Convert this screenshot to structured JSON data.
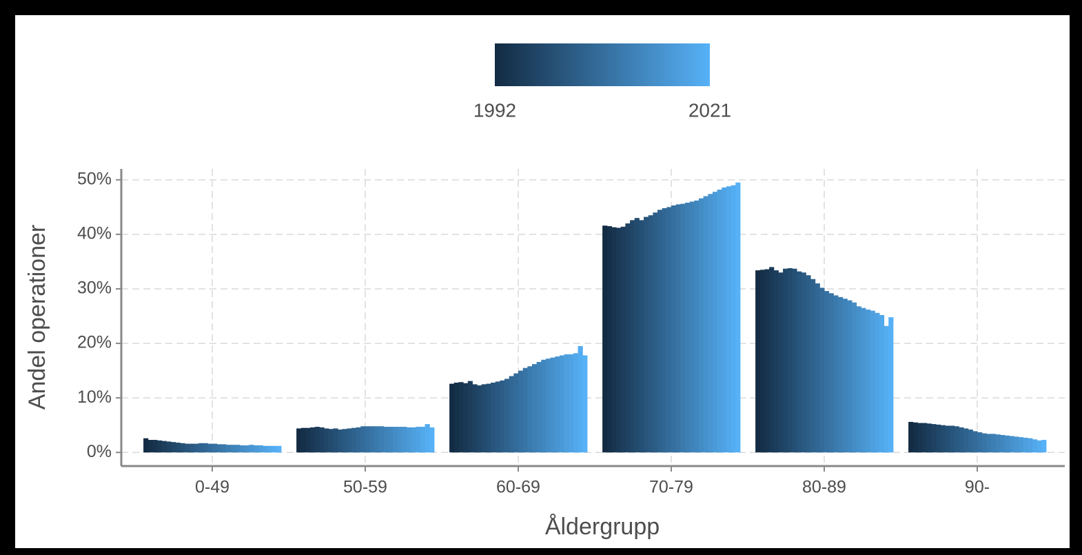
{
  "chart_data": {
    "type": "grouped-bar",
    "x_label": "Åldergrupp",
    "y_label": "Andel operationer",
    "categories": [
      "0-49",
      "50-59",
      "60-69",
      "70-79",
      "80-89",
      "90-"
    ],
    "values": [
      [
        2.6,
        2.3,
        2.3,
        2.2,
        2.1,
        2.0,
        1.9,
        1.8,
        1.7,
        1.6,
        1.6,
        1.6,
        1.7,
        1.7,
        1.6,
        1.6,
        1.5,
        1.5,
        1.4,
        1.4,
        1.4,
        1.3,
        1.3,
        1.4,
        1.3,
        1.3,
        1.2,
        1.2,
        1.2,
        1.2
      ],
      [
        4.4,
        4.5,
        4.5,
        4.6,
        4.7,
        4.6,
        4.4,
        4.3,
        4.4,
        4.2,
        4.3,
        4.4,
        4.5,
        4.6,
        4.8,
        4.8,
        4.8,
        4.8,
        4.8,
        4.7,
        4.7,
        4.7,
        4.7,
        4.7,
        4.6,
        4.6,
        4.7,
        4.7,
        5.2,
        4.6
      ],
      [
        12.6,
        12.8,
        12.9,
        12.7,
        13.1,
        12.5,
        12.3,
        12.5,
        12.6,
        12.8,
        13.0,
        13.2,
        13.5,
        14.0,
        14.5,
        15.0,
        15.5,
        15.8,
        16.2,
        16.6,
        17.0,
        17.2,
        17.4,
        17.6,
        17.8,
        18.0,
        18.0,
        18.2,
        19.5,
        17.8
      ],
      [
        41.6,
        41.5,
        41.3,
        41.2,
        41.4,
        42.0,
        42.6,
        43.0,
        42.6,
        43.2,
        43.5,
        44.0,
        44.5,
        44.8,
        45.0,
        45.3,
        45.5,
        45.6,
        45.8,
        46.0,
        46.2,
        46.6,
        47.0,
        47.4,
        47.8,
        48.2,
        48.6,
        48.8,
        49.0,
        49.5
      ],
      [
        33.4,
        33.5,
        33.6,
        34.0,
        33.4,
        33.0,
        33.7,
        33.8,
        33.7,
        33.2,
        33.0,
        32.5,
        31.8,
        31.0,
        30.2,
        29.6,
        29.2,
        28.8,
        28.5,
        28.2,
        27.9,
        27.5,
        26.8,
        26.5,
        26.2,
        26.0,
        25.6,
        25.2,
        23.2,
        24.8
      ],
      [
        5.6,
        5.5,
        5.4,
        5.4,
        5.3,
        5.2,
        5.1,
        5.0,
        4.9,
        4.9,
        4.8,
        4.6,
        4.4,
        4.2,
        3.9,
        3.7,
        3.5,
        3.4,
        3.4,
        3.3,
        3.2,
        3.1,
        3.0,
        2.9,
        2.8,
        2.7,
        2.6,
        2.4,
        2.2,
        2.3
      ]
    ],
    "color_scale": {
      "min": 1992,
      "max": 2021,
      "colors": [
        "#132b43",
        "#56b1f7"
      ]
    },
    "ylim": [
      -2.5,
      52
    ],
    "yticks": [
      {
        "value": 0,
        "label": "0%"
      },
      {
        "value": 10,
        "label": "10%"
      },
      {
        "value": 20,
        "label": "20%"
      },
      {
        "value": 30,
        "label": "30%"
      },
      {
        "value": 40,
        "label": "40%"
      },
      {
        "value": 50,
        "label": "50%"
      }
    ],
    "grid": true
  }
}
